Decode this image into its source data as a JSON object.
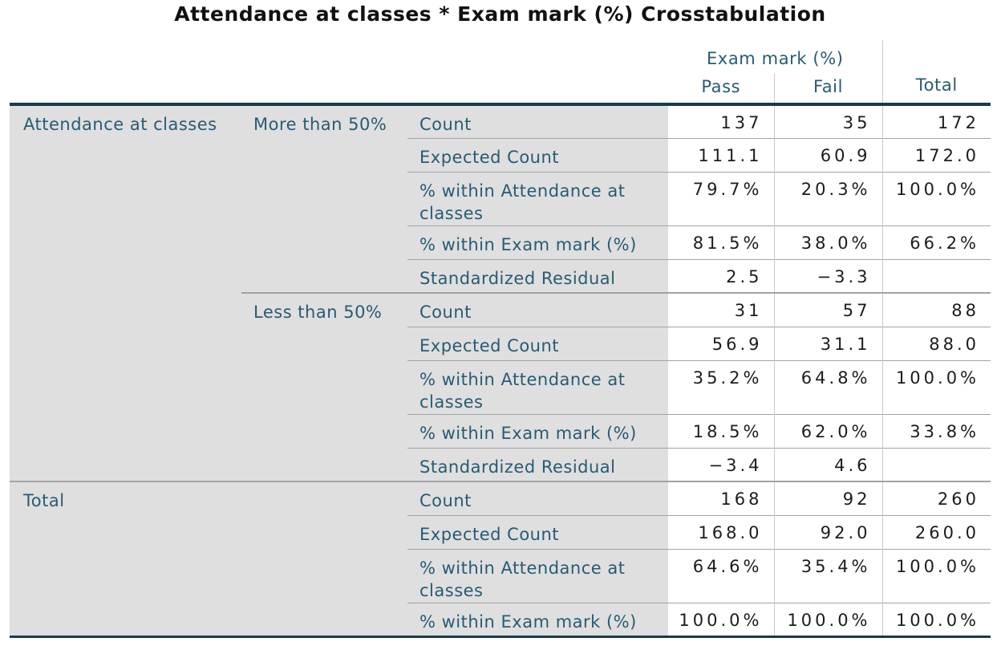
{
  "title": "Attendance at classes * Exam mark (%) Crosstabulation",
  "colors": {
    "accent_teal": "#275b74",
    "border_navy": "#173a4d",
    "row_label_bg": "#dfdfdf",
    "grid_light": "#c9c9c9",
    "grid_mid": "#a3a3a3"
  },
  "table": {
    "column_group_header": "Exam mark (%)",
    "columns": [
      "Pass",
      "Fail",
      "Total"
    ],
    "row_dimension": "Attendance at classes",
    "groups": [
      {
        "label": "More than 50%",
        "rows": [
          [
            "Count",
            "137",
            "35",
            "172"
          ],
          [
            "Expected Count",
            "111.1",
            "60.9",
            "172.0"
          ],
          [
            "% within Attendance at classes",
            "79.7%",
            "20.3%",
            "100.0%"
          ],
          [
            "% within Exam mark (%)",
            "81.5%",
            "38.0%",
            "66.2%"
          ],
          [
            "Standardized Residual",
            "2.5",
            "−3.3",
            ""
          ]
        ]
      },
      {
        "label": "Less than 50%",
        "rows": [
          [
            "Count",
            "31",
            "57",
            "88"
          ],
          [
            "Expected Count",
            "56.9",
            "31.1",
            "88.0"
          ],
          [
            "% within Attendance at classes",
            "35.2%",
            "64.8%",
            "100.0%"
          ],
          [
            "% within Exam mark (%)",
            "18.5%",
            "62.0%",
            "33.8%"
          ],
          [
            "Standardized Residual",
            "−3.4",
            "4.6",
            ""
          ]
        ]
      }
    ],
    "total": {
      "label": "Total",
      "rows": [
        [
          "Count",
          "168",
          "92",
          "260"
        ],
        [
          "Expected Count",
          "168.0",
          "92.0",
          "260.0"
        ],
        [
          "% within Attendance at classes",
          "64.6%",
          "35.4%",
          "100.0%"
        ],
        [
          "% within Exam mark (%)",
          "100.0%",
          "100.0%",
          "100.0%"
        ]
      ]
    }
  }
}
